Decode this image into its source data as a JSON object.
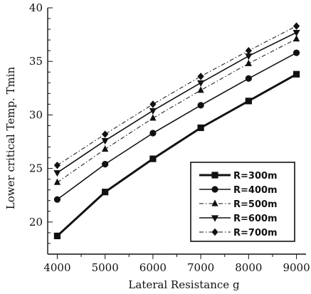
{
  "chart_data": {
    "type": "line",
    "title": "",
    "xlabel": "Lateral Resistance g",
    "ylabel": "Lower critical Temp. Tmin",
    "xlim": [
      3800,
      9200
    ],
    "ylim": [
      17,
      40
    ],
    "x": [
      4000,
      5000,
      6000,
      7000,
      8000,
      9000
    ],
    "x_ticks": [
      4000,
      5000,
      6000,
      7000,
      8000,
      9000
    ],
    "y_ticks": [
      20,
      25,
      30,
      35,
      40
    ],
    "grid": false,
    "legend_position": "bottom-right",
    "series": [
      {
        "name": "R=300m",
        "marker": "square",
        "line_style": "solid",
        "line_weight": "heavy",
        "values": [
          18.7,
          22.8,
          25.9,
          28.8,
          31.3,
          33.8
        ]
      },
      {
        "name": "R=400m",
        "marker": "circle",
        "line_style": "solid",
        "line_weight": "normal",
        "values": [
          22.1,
          25.4,
          28.3,
          30.9,
          33.4,
          35.8
        ]
      },
      {
        "name": "R=500m",
        "marker": "triangle-up",
        "line_style": "dash-dot",
        "line_weight": "thin",
        "values": [
          23.7,
          26.8,
          29.7,
          32.3,
          34.8,
          37.1
        ]
      },
      {
        "name": "R=600m",
        "marker": "triangle-down",
        "line_style": "solid",
        "line_weight": "normal",
        "values": [
          24.6,
          27.6,
          30.4,
          33.0,
          35.5,
          37.7
        ]
      },
      {
        "name": "R=700m",
        "marker": "diamond",
        "line_style": "dash-dot",
        "line_weight": "thin",
        "values": [
          25.3,
          28.2,
          31.0,
          33.6,
          36.0,
          38.3
        ]
      }
    ],
    "colors": {
      "line": "#111111",
      "background": "#ffffff"
    }
  }
}
